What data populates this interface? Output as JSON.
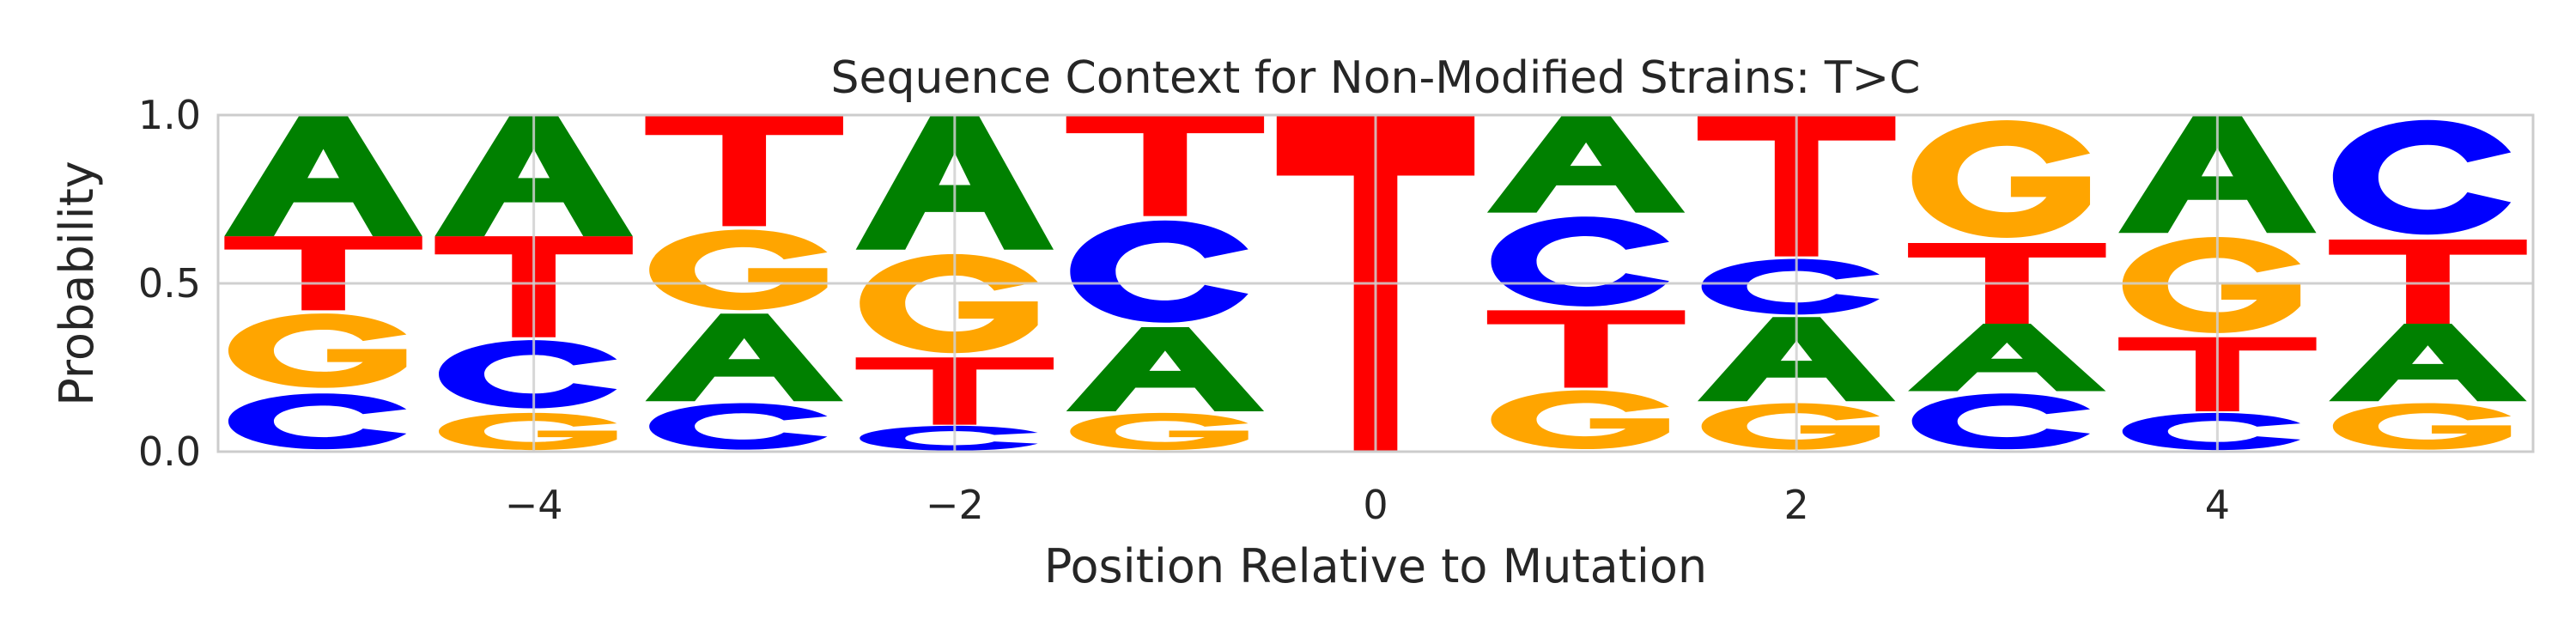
{
  "chart_data": {
    "type": "sequence_logo",
    "title": "Sequence Context for Non-Modified Strains: T>C",
    "xlabel": "Position Relative to Mutation",
    "ylabel": "Probability",
    "xlim": [
      -5.5,
      5.5
    ],
    "ylim": [
      0,
      1
    ],
    "x_ticks": [
      -4,
      -2,
      0,
      2,
      4
    ],
    "x_tick_labels": [
      "−4",
      "−2",
      "0",
      "2",
      "4"
    ],
    "y_ticks": [
      0,
      0.5,
      1
    ],
    "y_tick_labels": [
      "0.0",
      "0.5",
      "1.0"
    ],
    "grid": true,
    "colors": {
      "A": "#008000",
      "C": "#0000ff",
      "G": "#ffa500",
      "T": "#ff0000"
    },
    "positions": [
      {
        "x": -5,
        "stack": [
          {
            "base": "C",
            "value": 0.18
          },
          {
            "base": "G",
            "value": 0.24
          },
          {
            "base": "T",
            "value": 0.22
          },
          {
            "base": "A",
            "value": 0.36
          }
        ]
      },
      {
        "x": -4,
        "stack": [
          {
            "base": "G",
            "value": 0.12
          },
          {
            "base": "C",
            "value": 0.22
          },
          {
            "base": "T",
            "value": 0.3
          },
          {
            "base": "A",
            "value": 0.36
          }
        ]
      },
      {
        "x": -3,
        "stack": [
          {
            "base": "C",
            "value": 0.15
          },
          {
            "base": "A",
            "value": 0.26
          },
          {
            "base": "G",
            "value": 0.26
          },
          {
            "base": "T",
            "value": 0.33
          }
        ]
      },
      {
        "x": -2,
        "stack": [
          {
            "base": "C",
            "value": 0.08
          },
          {
            "base": "T",
            "value": 0.2
          },
          {
            "base": "G",
            "value": 0.32
          },
          {
            "base": "A",
            "value": 0.4
          }
        ]
      },
      {
        "x": -1,
        "stack": [
          {
            "base": "G",
            "value": 0.12
          },
          {
            "base": "A",
            "value": 0.25
          },
          {
            "base": "C",
            "value": 0.33
          },
          {
            "base": "T",
            "value": 0.3
          }
        ]
      },
      {
        "x": 0,
        "stack": [
          {
            "base": "T",
            "value": 1.0
          }
        ]
      },
      {
        "x": 1,
        "stack": [
          {
            "base": "G",
            "value": 0.19
          },
          {
            "base": "T",
            "value": 0.23
          },
          {
            "base": "C",
            "value": 0.29
          },
          {
            "base": "A",
            "value": 0.29
          }
        ]
      },
      {
        "x": 2,
        "stack": [
          {
            "base": "G",
            "value": 0.15
          },
          {
            "base": "A",
            "value": 0.25
          },
          {
            "base": "C",
            "value": 0.18
          },
          {
            "base": "T",
            "value": 0.42
          }
        ]
      },
      {
        "x": 3,
        "stack": [
          {
            "base": "C",
            "value": 0.18
          },
          {
            "base": "A",
            "value": 0.2
          },
          {
            "base": "T",
            "value": 0.24
          },
          {
            "base": "G",
            "value": 0.38
          }
        ]
      },
      {
        "x": 4,
        "stack": [
          {
            "base": "C",
            "value": 0.12
          },
          {
            "base": "T",
            "value": 0.22
          },
          {
            "base": "G",
            "value": 0.31
          },
          {
            "base": "A",
            "value": 0.35
          }
        ]
      },
      {
        "x": 5,
        "stack": [
          {
            "base": "G",
            "value": 0.15
          },
          {
            "base": "A",
            "value": 0.23
          },
          {
            "base": "T",
            "value": 0.25
          },
          {
            "base": "C",
            "value": 0.37
          }
        ]
      }
    ]
  }
}
